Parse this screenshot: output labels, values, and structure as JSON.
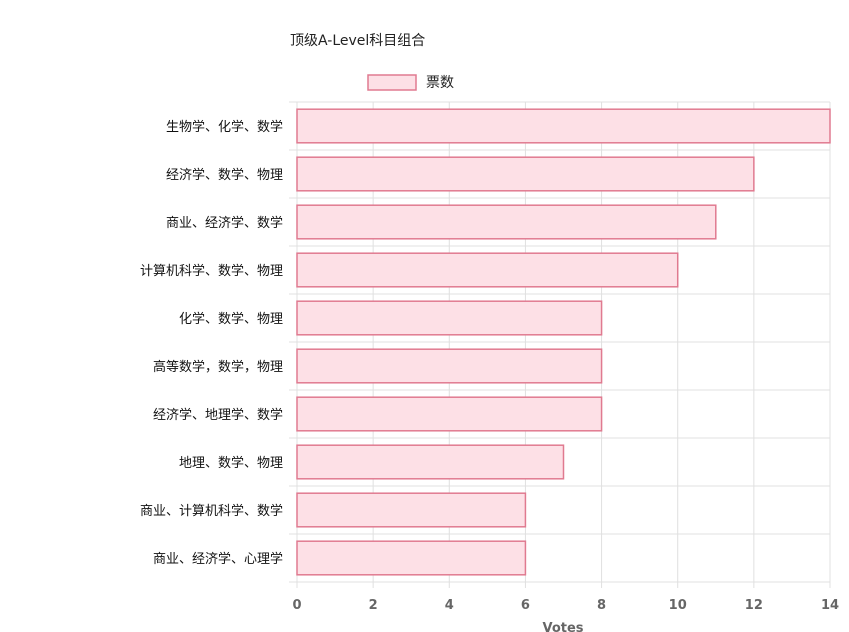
{
  "chart_data": {
    "type": "bar",
    "orientation": "horizontal",
    "title": "顶级A-Level科目组合",
    "legend": {
      "label": "票数",
      "placement": "top-center"
    },
    "categories": [
      "生物学、化学、数学",
      "经济学、数学、物理",
      "商业、经济学、数学",
      "计算机科学、数学、物理",
      "化学、数学、物理",
      "高等数学，数学，物理",
      "经济学、地理学、数学",
      "地理、数学、物理",
      "商业、计算机科学、数学",
      "商业、经济学、心理学"
    ],
    "series": [
      {
        "name": "票数",
        "values": [
          14,
          12,
          11,
          10,
          8,
          8,
          8,
          7,
          6,
          6
        ]
      }
    ],
    "xlabel": "Votes",
    "xlim": [
      0,
      14
    ],
    "xticks": [
      "0",
      "2",
      "4",
      "6",
      "8",
      "10",
      "12",
      "14"
    ],
    "grid": true,
    "colors": {
      "bar_fill": "#fde0e6",
      "bar_border": "#e07a90",
      "grid": "#e0e0e0"
    }
  }
}
